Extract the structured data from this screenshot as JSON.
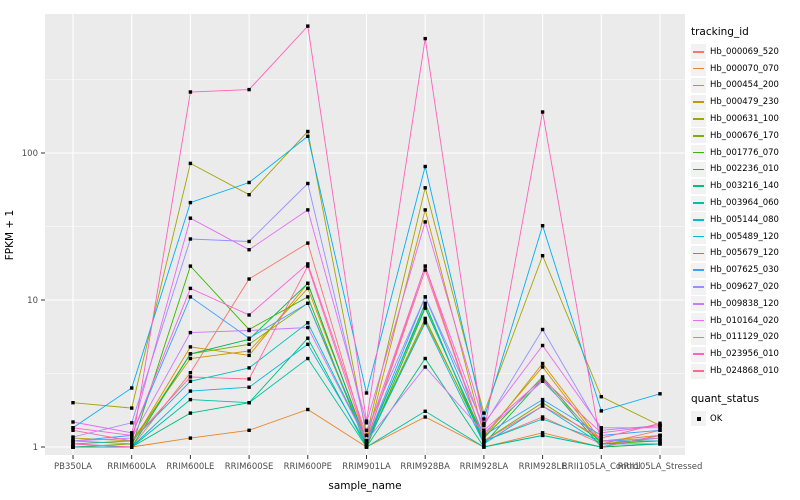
{
  "axis": {
    "y_label": "FPKM + 1",
    "x_label": "sample_name",
    "y_ticks": [
      "1",
      "10",
      "100"
    ]
  },
  "legend": {
    "tracking_title": "tracking_id",
    "quant_title": "quant_status",
    "quant_items": [
      {
        "label": "OK"
      }
    ]
  },
  "style": {
    "panel_bg": "#ebebeb",
    "grid_color": "#ffffff",
    "tick_text_color": "#4d4d4d",
    "point_color": "#000000",
    "legend_key_bg": "#f2f2f2"
  },
  "chart_data": {
    "type": "line",
    "title": "",
    "xlabel": "sample_name",
    "ylabel": "FPKM + 1",
    "y_scale": "log10",
    "ylim": [
      1,
      870
    ],
    "y_tick_values": [
      1,
      10,
      100
    ],
    "grid": true,
    "legend_position": "right",
    "point_marker": "black-square",
    "categories": [
      "PB350LA",
      "RRIM600LA",
      "RRIM600LE",
      "RRIM600SE",
      "RRIM600PE",
      "RRIM901LA",
      "RRIM928BA",
      "RRIM928LA",
      "RRIM928LE",
      "RRII105LA_Control",
      "RRII105LA_Stressed"
    ],
    "series": [
      {
        "name": "Hb_000069_520",
        "color": "#F8766D",
        "values": [
          1.05,
          1.0,
          3.2,
          13.9,
          24.4,
          1.1,
          17.0,
          1.1,
          1.6,
          1.05,
          1.3
        ]
      },
      {
        "name": "Hb_000070_070",
        "color": "#E88526",
        "values": [
          1.0,
          1.0,
          1.15,
          1.3,
          1.8,
          1.0,
          1.6,
          1.0,
          1.25,
          1.0,
          1.05
        ]
      },
      {
        "name": "Hb_000454_200",
        "color": "#D89000",
        "values": [
          1.1,
          1.05,
          4.8,
          4.2,
          13.0,
          1.05,
          7.2,
          1.15,
          3.7,
          1.1,
          1.2
        ]
      },
      {
        "name": "Hb_000479_230",
        "color": "#C09B00",
        "values": [
          1.15,
          1.1,
          4.0,
          4.5,
          12.0,
          1.1,
          41.0,
          1.2,
          3.5,
          1.05,
          1.15
        ]
      },
      {
        "name": "Hb_000631_100",
        "color": "#A3A500",
        "values": [
          2.0,
          1.84,
          85.0,
          52.0,
          140.0,
          1.2,
          58.0,
          1.7,
          20.0,
          2.2,
          1.4
        ]
      },
      {
        "name": "Hb_000676_170",
        "color": "#7CAE00",
        "values": [
          1.0,
          1.05,
          4.3,
          5.0,
          9.5,
          1.05,
          7.5,
          1.1,
          2.0,
          1.1,
          1.1
        ]
      },
      {
        "name": "Hb_001776_070",
        "color": "#39B600",
        "values": [
          1.0,
          1.0,
          17.0,
          6.3,
          10.5,
          1.0,
          8.8,
          1.15,
          3.0,
          1.05,
          1.1
        ]
      },
      {
        "name": "Hb_002236_010",
        "color": "#00BB4E",
        "values": [
          1.0,
          1.0,
          4.3,
          5.4,
          13.0,
          1.05,
          9.5,
          1.05,
          2.9,
          1.0,
          1.05
        ]
      },
      {
        "name": "Hb_003216_140",
        "color": "#00BF7D",
        "values": [
          1.0,
          1.0,
          1.7,
          2.0,
          5.5,
          1.0,
          4.0,
          1.0,
          1.2,
          1.0,
          1.2
        ]
      },
      {
        "name": "Hb_003964_060",
        "color": "#00C1A3",
        "values": [
          1.0,
          1.0,
          2.1,
          2.0,
          4.0,
          1.0,
          1.75,
          1.0,
          1.2,
          1.0,
          1.2
        ]
      },
      {
        "name": "Hb_005144_080",
        "color": "#00BFC4",
        "values": [
          1.05,
          1.1,
          2.8,
          3.45,
          7.0,
          1.1,
          9.0,
          1.1,
          1.55,
          1.1,
          1.1
        ]
      },
      {
        "name": "Hb_005489_120",
        "color": "#00BAE0",
        "values": [
          1.0,
          1.0,
          2.4,
          2.55,
          5.0,
          1.05,
          7.0,
          1.05,
          1.9,
          1.05,
          1.05
        ]
      },
      {
        "name": "Hb_005679_120",
        "color": "#00B0F6",
        "values": [
          1.35,
          2.52,
          46.0,
          63.0,
          130.0,
          2.33,
          81.0,
          1.55,
          32.0,
          1.76,
          2.3
        ]
      },
      {
        "name": "Hb_007625_030",
        "color": "#35A2FF",
        "values": [
          1.1,
          1.2,
          10.5,
          5.5,
          9.5,
          1.1,
          10.5,
          1.2,
          2.1,
          1.2,
          1.3
        ]
      },
      {
        "name": "Hb_009627_020",
        "color": "#9590FF",
        "values": [
          1.17,
          1.46,
          26.0,
          25.0,
          62.0,
          1.3,
          10.5,
          1.4,
          6.3,
          1.3,
          1.4
        ]
      },
      {
        "name": "Hb_009838_120",
        "color": "#C77CFF",
        "values": [
          1.1,
          1.15,
          6.0,
          6.2,
          6.5,
          1.1,
          3.5,
          1.25,
          2.8,
          1.1,
          1.15
        ]
      },
      {
        "name": "Hb_010164_020",
        "color": "#E76BF3",
        "values": [
          1.48,
          1.25,
          36.0,
          22.0,
          41.0,
          1.46,
          34.0,
          1.45,
          4.9,
          1.35,
          1.35
        ]
      },
      {
        "name": "Hb_011129_020",
        "color": "#FA62DB",
        "values": [
          1.35,
          1.2,
          12.0,
          7.9,
          17.6,
          1.2,
          17.0,
          1.3,
          2.9,
          1.25,
          1.4
        ]
      },
      {
        "name": "Hb_023956_010",
        "color": "#FF62BC",
        "values": [
          1.05,
          1.0,
          260.0,
          270.0,
          730.0,
          1.5,
          600.0,
          1.25,
          190.0,
          1.0,
          1.2
        ]
      },
      {
        "name": "Hb_024868_010",
        "color": "#FF6A98",
        "values": [
          1.3,
          1.1,
          3.0,
          2.9,
          17.0,
          1.1,
          16.0,
          1.1,
          1.9,
          1.15,
          1.45
        ]
      }
    ]
  }
}
